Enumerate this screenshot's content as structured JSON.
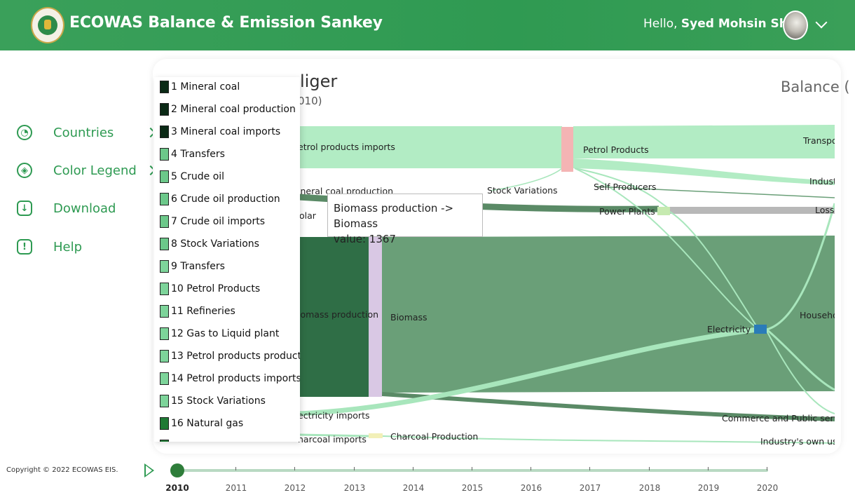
{
  "header": {
    "title": "ECOWAS Balance & Emission Sankey",
    "greeting_prefix": "Hello, ",
    "user_name": "Syed Mohsin Shah"
  },
  "sidebar": {
    "items": [
      {
        "label": "Countries",
        "icon": "globe-icon"
      },
      {
        "label": "Color Legend",
        "icon": "palette-icon"
      },
      {
        "label": "Download",
        "icon": "download-icon"
      },
      {
        "label": "Help",
        "icon": "help-icon"
      }
    ]
  },
  "main": {
    "title_fragment": "liger",
    "year_fragment": "010)",
    "mode_fragment": "Balance (",
    "sankey_labels": [
      "etrol products imports",
      "Petrol Products",
      "Transpo",
      "Stock Variations",
      "Self Producers",
      "Industr",
      "ineral coal production",
      "Power Plants",
      "Losse",
      "olar",
      "iomass production",
      "Biomass",
      "Electricity",
      "Househol",
      "ectricity imports",
      "Commerce and Public service",
      "harcoal imports",
      "Charcoal Production",
      "Industry's own usag"
    ]
  },
  "legend": {
    "items": [
      {
        "label": "1 Mineral coal",
        "color": "#0b2a16"
      },
      {
        "label": "2 Mineral coal production",
        "color": "#0b2a16"
      },
      {
        "label": "3 Mineral coal imports",
        "color": "#0b2a16"
      },
      {
        "label": "4 Transfers",
        "color": "#6cc88a"
      },
      {
        "label": "5 Crude oil",
        "color": "#6cc88a"
      },
      {
        "label": "6 Crude oil production",
        "color": "#6cc88a"
      },
      {
        "label": "7 Crude oil imports",
        "color": "#6cc88a"
      },
      {
        "label": "8 Stock Variations",
        "color": "#6cc88a"
      },
      {
        "label": "9 Transfers",
        "color": "#7dd49a"
      },
      {
        "label": "10 Petrol Products",
        "color": "#7dd49a"
      },
      {
        "label": "11 Refineries",
        "color": "#7dd49a"
      },
      {
        "label": "12 Gas to Liquid plant",
        "color": "#7dd49a"
      },
      {
        "label": "13 Petrol products production",
        "color": "#7dd49a"
      },
      {
        "label": "14 Petrol products imports",
        "color": "#7dd49a"
      },
      {
        "label": "15 Stock Variations",
        "color": "#7dd49a"
      },
      {
        "label": "16 Natural gas",
        "color": "#1f7a34"
      }
    ]
  },
  "tooltip": {
    "line1": "Biomass production -> Biomass",
    "line2": "value: 1367"
  },
  "footer": {
    "copyright": "Copyright © 2022 ECOWAS EIS.",
    "years": [
      "2010",
      "2011",
      "2012",
      "2013",
      "2014",
      "2015",
      "2016",
      "2017",
      "2018",
      "2019",
      "2020"
    ],
    "selected_year": "2010"
  },
  "colors": {
    "brand_green": "#2e9a52",
    "biomass_flow": "#6a9f78",
    "petrol_flow": "#b2ecc4",
    "biomass_node": "#d9c8e4",
    "electricity_node": "#2a7cb8",
    "petrol_node": "#f4b4b4"
  }
}
